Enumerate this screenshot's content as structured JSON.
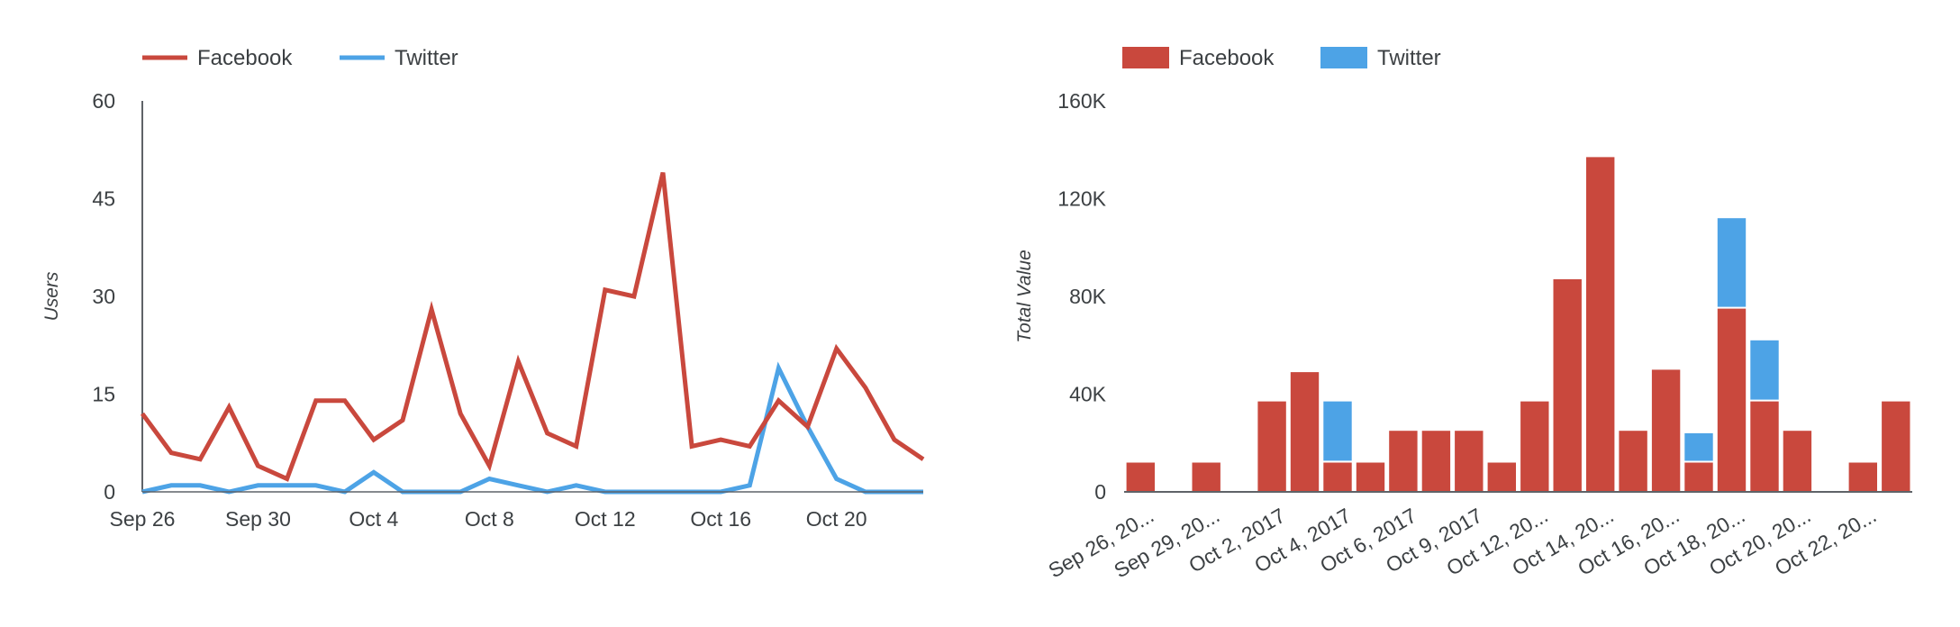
{
  "colors": {
    "facebook": "#c9483d",
    "twitter": "#4da3e6"
  },
  "chart_data": [
    {
      "type": "line",
      "xlabel": "",
      "ylabel": "Users",
      "ylim": [
        0,
        60
      ],
      "yticks": [
        "60",
        "45",
        "30",
        "15",
        "0"
      ],
      "xtick_labels": [
        "Sep 26",
        "Sep 30",
        "Oct 4",
        "Oct 8",
        "Oct 12",
        "Oct 16",
        "Oct 20"
      ],
      "x": [
        "Sep 26",
        "Sep 27",
        "Sep 28",
        "Sep 29",
        "Sep 30",
        "Oct 1",
        "Oct 2",
        "Oct 3",
        "Oct 4",
        "Oct 5",
        "Oct 6",
        "Oct 7",
        "Oct 8",
        "Oct 9",
        "Oct 10",
        "Oct 11",
        "Oct 12",
        "Oct 13",
        "Oct 14",
        "Oct 15",
        "Oct 16",
        "Oct 17",
        "Oct 18",
        "Oct 19",
        "Oct 20",
        "Oct 21",
        "Oct 22",
        "Oct 23"
      ],
      "legend": [
        "Facebook",
        "Twitter"
      ],
      "legend_position": "top-left",
      "grid": false,
      "series": [
        {
          "name": "Facebook",
          "values": [
            12,
            6,
            5,
            13,
            4,
            2,
            14,
            14,
            8,
            11,
            28,
            12,
            4,
            20,
            9,
            7,
            31,
            30,
            49,
            7,
            8,
            7,
            14,
            10,
            22,
            16,
            8,
            5
          ]
        },
        {
          "name": "Twitter",
          "values": [
            0,
            1,
            1,
            0,
            1,
            1,
            1,
            0,
            3,
            0,
            0,
            0,
            2,
            1,
            0,
            1,
            0,
            0,
            0,
            0,
            0,
            1,
            19,
            10,
            2,
            0,
            0,
            0
          ]
        }
      ]
    },
    {
      "type": "bar",
      "stacked": true,
      "xlabel": "",
      "ylabel": "Total Value",
      "ylim": [
        0,
        160000
      ],
      "yticks": [
        "160K",
        "120K",
        "80K",
        "40K",
        "0"
      ],
      "categories": [
        "Sep 26, 2017",
        "Sep 28, 2017",
        "Sep 29, 2017",
        "Oct 1, 2017",
        "Oct 2, 2017",
        "Oct 3, 2017",
        "Oct 4, 2017",
        "Oct 5, 2017",
        "Oct 6, 2017",
        "Oct 8, 2017",
        "Oct 9, 2017",
        "Oct 11, 2017",
        "Oct 12, 2017",
        "Oct 13, 2017",
        "Oct 14, 2017",
        "Oct 15, 2017",
        "Oct 16, 2017",
        "Oct 17, 2017",
        "Oct 18, 2017",
        "Oct 19, 2017",
        "Oct 20, 2017",
        "Oct 21, 2017",
        "Oct 22, 2017",
        "Oct 23, 2017"
      ],
      "tick_labels": [
        "Sep 26, 20...",
        "Sep 29, 20...",
        "Oct 2, 2017",
        "Oct 4, 2017",
        "Oct 6, 2017",
        "Oct 9, 2017",
        "Oct 12, 20...",
        "Oct 14, 20...",
        "Oct 16, 20...",
        "Oct 18, 20...",
        "Oct 20, 20...",
        "Oct 22, 20..."
      ],
      "legend": [
        "Facebook",
        "Twitter"
      ],
      "legend_position": "top-left",
      "grid": false,
      "series": [
        {
          "name": "Facebook",
          "values": [
            12000,
            0,
            12000,
            0,
            37000,
            49000,
            12000,
            12000,
            25000,
            25000,
            25000,
            12000,
            37000,
            87000,
            137000,
            25000,
            50000,
            12000,
            75000,
            37000,
            25000,
            0,
            12000,
            37000
          ]
        },
        {
          "name": "Twitter",
          "values": [
            0,
            0,
            0,
            0,
            0,
            0,
            25000,
            0,
            0,
            0,
            0,
            0,
            0,
            0,
            0,
            0,
            0,
            12000,
            37000,
            25000,
            0,
            0,
            0,
            0
          ]
        }
      ]
    }
  ]
}
